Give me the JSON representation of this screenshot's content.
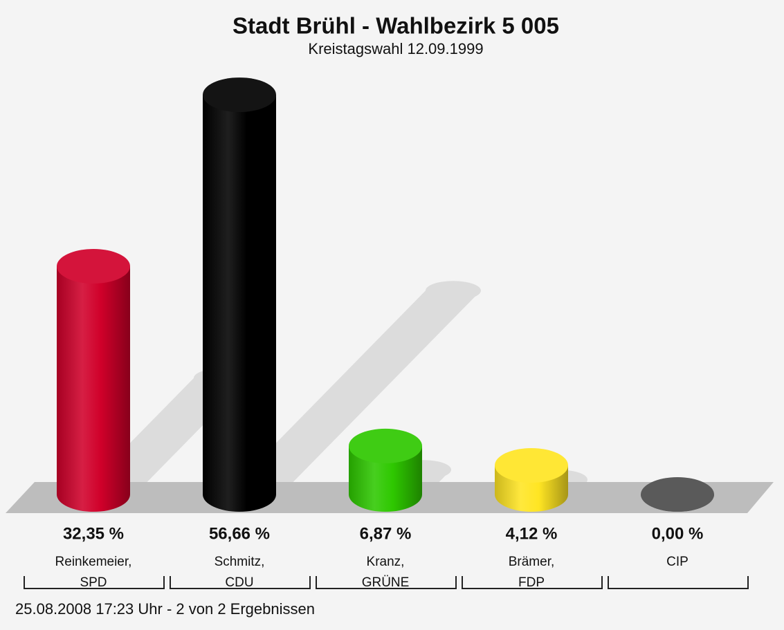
{
  "chart_data": {
    "type": "bar",
    "title": "Stadt Brühl - Wahlbezirk 5 005",
    "subtitle": "Kreistagswahl 12.09.1999",
    "categories": [
      [
        "Reinkemeier,",
        "SPD"
      ],
      [
        "Schmitz,",
        "CDU"
      ],
      [
        "Kranz,",
        "GRÜNE"
      ],
      [
        "Brämer,",
        "FDP"
      ],
      [
        "CIP"
      ]
    ],
    "values": [
      32.35,
      56.66,
      6.87,
      4.12,
      0.0
    ],
    "value_labels": [
      "32,35 %",
      "56,66 %",
      "6,87 %",
      "4,12 %",
      "0,00 %"
    ],
    "colors": [
      "#d0002a",
      "#000000",
      "#2ec800",
      "#ffe523",
      "#5a5a5a"
    ],
    "footer": "25.08.2008 17:23 Uhr - 2 von 2 Ergebnissen"
  }
}
